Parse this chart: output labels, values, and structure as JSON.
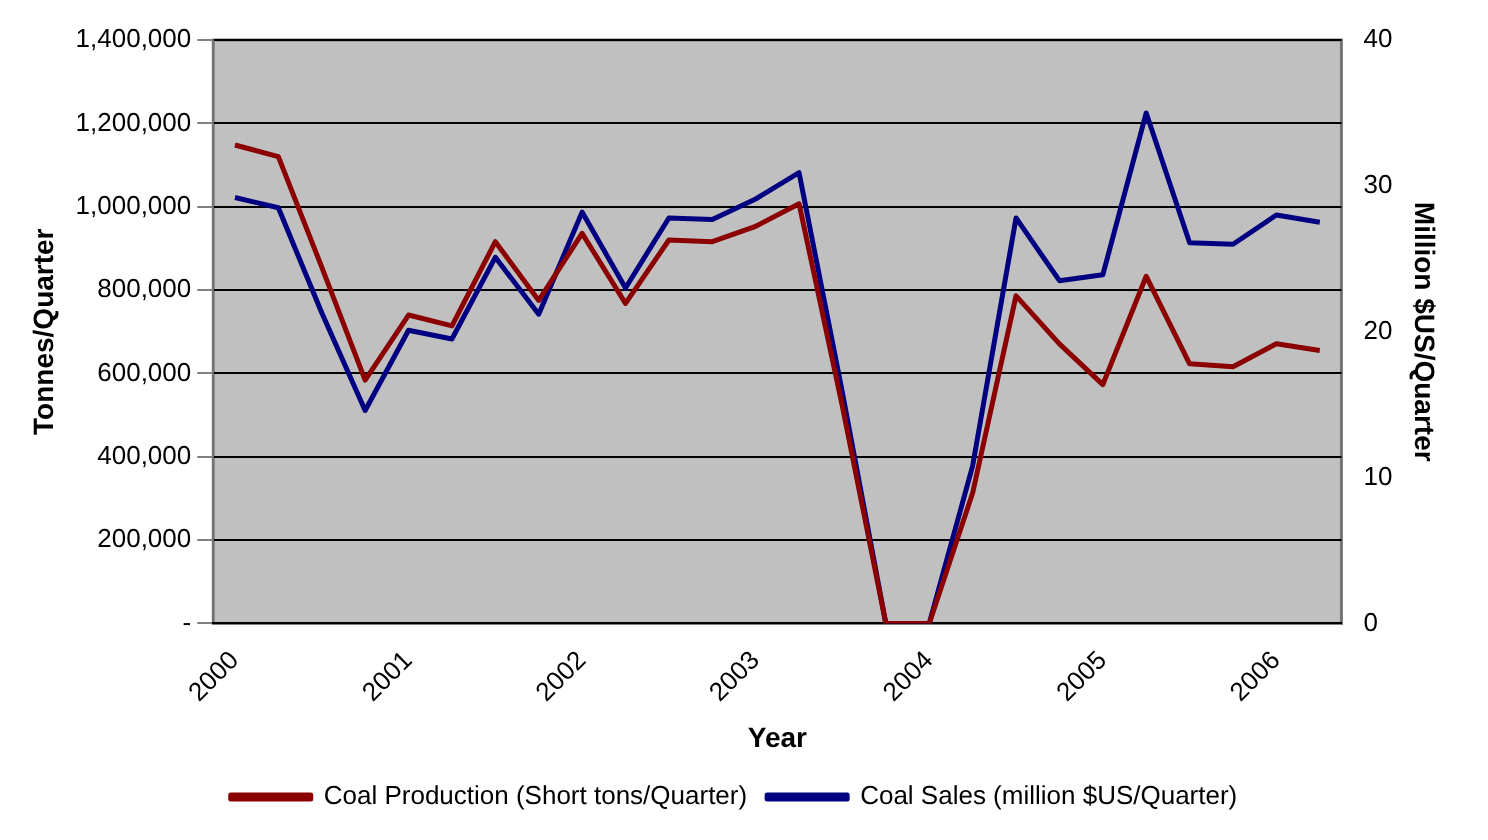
{
  "chart_data": {
    "type": "line",
    "xlabel": "Year",
    "ylabel": "Tonnes/Quarter",
    "y2label": "Million $US/Quarter",
    "categories": [
      "2000",
      null,
      null,
      null,
      "2001",
      null,
      null,
      null,
      "2002",
      null,
      null,
      null,
      "2003",
      null,
      null,
      null,
      "2004",
      null,
      null,
      null,
      "2005",
      null,
      null,
      null,
      "2006",
      null
    ],
    "series": [
      {
        "name": "Coal Production (Short tons/Quarter)",
        "color": "#8b0000",
        "values": [
          1148000,
          1120000,
          855000,
          584000,
          740000,
          714000,
          916000,
          775000,
          936000,
          768000,
          920000,
          916000,
          953000,
          1007000,
          520000,
          0,
          0,
          313000,
          786000,
          671000,
          573000,
          833000,
          623000,
          616000,
          671000,
          655000
        ]
      },
      {
        "name": "Coal Sales (million $US/Quarter)",
        "color": "#000080",
        "axis": "y2",
        "values": [
          29.2,
          28.5,
          21.3,
          14.6,
          20.1,
          19.5,
          25.1,
          21.2,
          28.2,
          23.0,
          27.8,
          27.7,
          29.1,
          30.9,
          15.8,
          0,
          0,
          10.8,
          27.8,
          23.5,
          23.9,
          35.0,
          26.1,
          26.0,
          28.0,
          27.5
        ]
      }
    ],
    "ylim": [
      0,
      1400000
    ],
    "yticks": [
      {
        "value": 0,
        "label": "-"
      },
      {
        "value": 200000,
        "label": "200,000"
      },
      {
        "value": 400000,
        "label": "400,000"
      },
      {
        "value": 600000,
        "label": "600,000"
      },
      {
        "value": 800000,
        "label": "800,000"
      },
      {
        "value": 1000000,
        "label": "1,000,000"
      },
      {
        "value": 1200000,
        "label": "1,200,000"
      },
      {
        "value": 1400000,
        "label": "1,400,000"
      }
    ],
    "y2lim": [
      0,
      40
    ],
    "y2ticks": [
      0,
      10,
      20,
      30,
      40
    ],
    "grid": "y",
    "legend": "bottom",
    "marker": "none",
    "line_style": "solid"
  }
}
